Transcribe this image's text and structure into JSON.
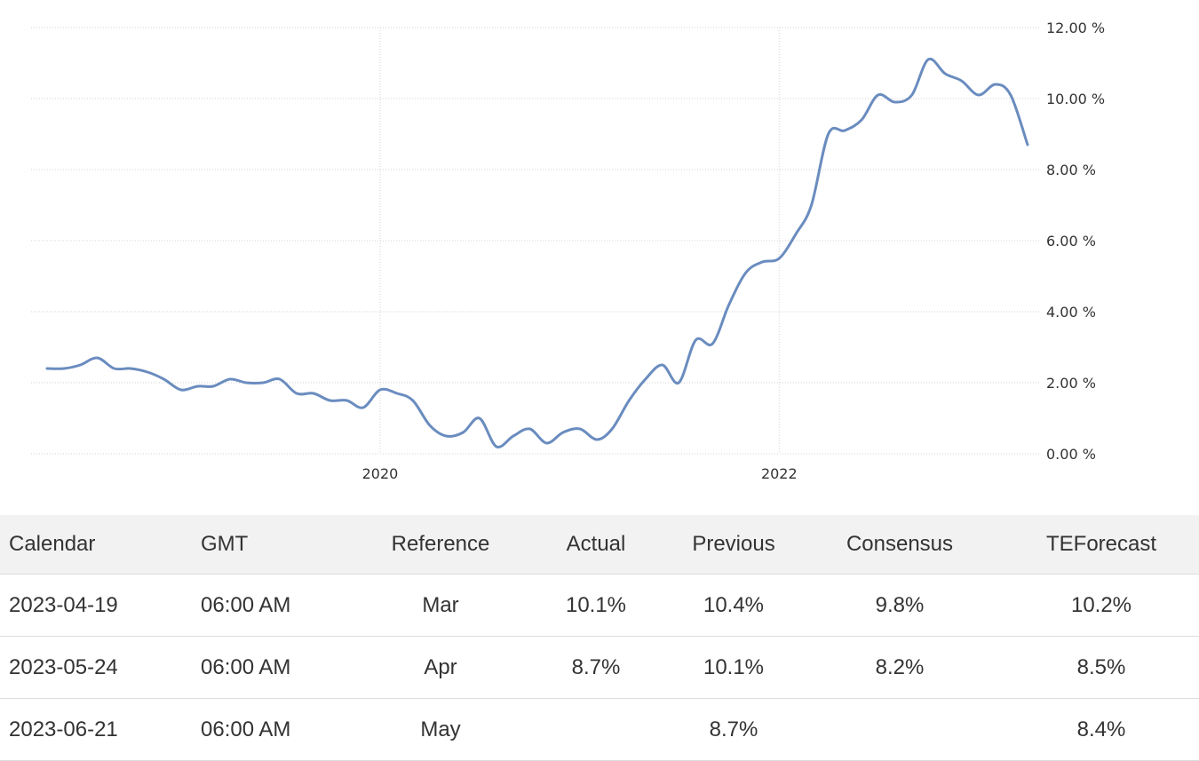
{
  "chart_data": {
    "type": "line",
    "x_ticks": [
      "2020",
      "2022"
    ],
    "y_ticks": [
      "0.00 %",
      "2.00 %",
      "4.00 %",
      "6.00 %",
      "8.00 %",
      "10.00 %",
      "12.00 %"
    ],
    "ylim": [
      0,
      12
    ],
    "grid": true,
    "line_color": "#6a8cbf",
    "series": [
      {
        "x": [
          "2018-05",
          "2018-06",
          "2018-07",
          "2018-08",
          "2018-09",
          "2018-10",
          "2018-11",
          "2018-12",
          "2019-01",
          "2019-02",
          "2019-03",
          "2019-04",
          "2019-05",
          "2019-06",
          "2019-07",
          "2019-08",
          "2019-09",
          "2019-10",
          "2019-11",
          "2019-12",
          "2020-01",
          "2020-02",
          "2020-03",
          "2020-04",
          "2020-05",
          "2020-06",
          "2020-07",
          "2020-08",
          "2020-09",
          "2020-10",
          "2020-11",
          "2020-12",
          "2021-01",
          "2021-02",
          "2021-03",
          "2021-04",
          "2021-05",
          "2021-06",
          "2021-07",
          "2021-08",
          "2021-09",
          "2021-10",
          "2021-11",
          "2021-12",
          "2022-01",
          "2022-02",
          "2022-03",
          "2022-04",
          "2022-05",
          "2022-06",
          "2022-07",
          "2022-08",
          "2022-09",
          "2022-10",
          "2022-11",
          "2022-12",
          "2023-01",
          "2023-02",
          "2023-03",
          "2023-04"
        ],
        "values": [
          2.4,
          2.4,
          2.5,
          2.7,
          2.4,
          2.4,
          2.3,
          2.1,
          1.8,
          1.9,
          1.9,
          2.1,
          2.0,
          2.0,
          2.1,
          1.7,
          1.7,
          1.5,
          1.5,
          1.3,
          1.8,
          1.7,
          1.5,
          0.8,
          0.5,
          0.6,
          1.0,
          0.2,
          0.5,
          0.7,
          0.3,
          0.6,
          0.7,
          0.4,
          0.7,
          1.5,
          2.1,
          2.5,
          2.0,
          3.2,
          3.1,
          4.2,
          5.1,
          5.4,
          5.5,
          6.2,
          7.0,
          9.0,
          9.1,
          9.4,
          10.1,
          9.9,
          10.1,
          11.1,
          10.7,
          10.5,
          10.1,
          10.4,
          10.1,
          8.7
        ]
      }
    ]
  },
  "table": {
    "headers": [
      "Calendar",
      "GMT",
      "Reference",
      "Actual",
      "Previous",
      "Consensus",
      "TEForecast"
    ],
    "rows": [
      [
        "2023-04-19",
        "06:00 AM",
        "Mar",
        "10.1%",
        "10.4%",
        "9.8%",
        "10.2%"
      ],
      [
        "2023-05-24",
        "06:00 AM",
        "Apr",
        "8.7%",
        "10.1%",
        "8.2%",
        "8.5%"
      ],
      [
        "2023-06-21",
        "06:00 AM",
        "May",
        "",
        "8.7%",
        "",
        "8.4%"
      ]
    ]
  }
}
